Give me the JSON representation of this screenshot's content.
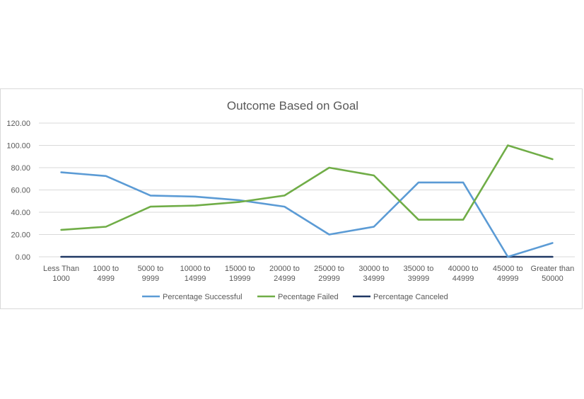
{
  "chart_data": {
    "type": "line",
    "title": "Outcome Based on Goal",
    "xlabel": "",
    "ylabel": "",
    "categories": [
      [
        "Less Than",
        "1000"
      ],
      [
        "1000 to",
        "4999"
      ],
      [
        "5000 to",
        "9999"
      ],
      [
        "10000 to",
        "14999"
      ],
      [
        "15000 to",
        "19999"
      ],
      [
        "20000 to",
        "24999"
      ],
      [
        "25000 to",
        "29999"
      ],
      [
        "30000 to",
        "34999"
      ],
      [
        "35000 to",
        "39999"
      ],
      [
        "40000 to",
        "44999"
      ],
      [
        "45000 to",
        "49999"
      ],
      [
        "Greater than",
        "50000"
      ]
    ],
    "y_ticks": [
      "0.00",
      "20.00",
      "40.00",
      "60.00",
      "80.00",
      "100.00",
      "120.00"
    ],
    "ylim": [
      0,
      120
    ],
    "grid": true,
    "legend_position": "bottom",
    "series": [
      {
        "name": "Percentage Successful",
        "color": "#5b9bd5",
        "values": [
          75.8,
          72.5,
          55.0,
          54.0,
          50.7,
          45.0,
          20.0,
          27.0,
          66.7,
          66.7,
          0.0,
          12.4
        ]
      },
      {
        "name": "Pecentage Failed",
        "color": "#70ad47",
        "values": [
          24.2,
          27.0,
          45.0,
          46.0,
          49.3,
          55.0,
          80.0,
          73.0,
          33.3,
          33.3,
          100.0,
          87.6
        ]
      },
      {
        "name": "Percentage Canceled",
        "color": "#203864",
        "values": [
          0,
          0,
          0,
          0,
          0,
          0,
          0,
          0,
          0,
          0,
          0,
          0
        ]
      }
    ]
  }
}
